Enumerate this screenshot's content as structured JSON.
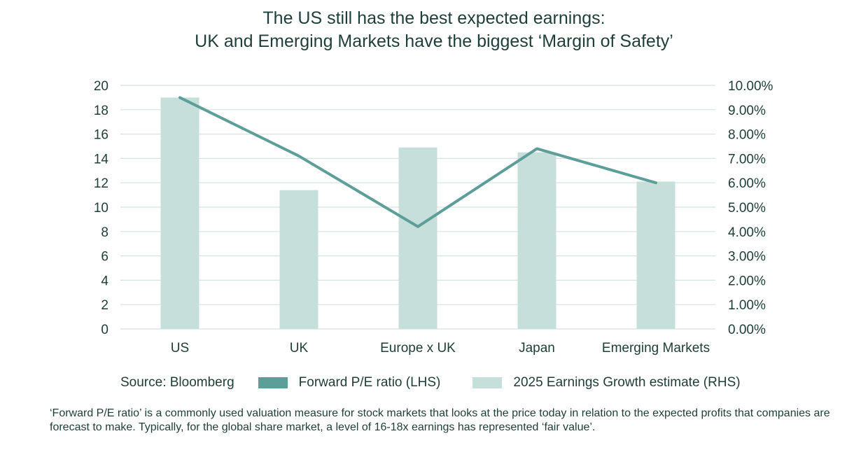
{
  "title": {
    "line1": "The US still has the best expected earnings:",
    "line2": "UK and Emerging Markets have the biggest ‘Margin of Safety’"
  },
  "legend": {
    "source": "Source: Bloomberg",
    "line_label": "Forward P/E ratio (LHS)",
    "bar_label": "2025 Earnings Growth estimate (RHS)"
  },
  "footnote": "‘Forward P/E ratio’ is a commonly used valuation measure for stock markets that looks at the price today in relation to the expected profits that companies are forecast to make. Typically, for the global share market, a level of 16-18x earnings has represented ‘fair value’.",
  "colors": {
    "line": "#5e9e98",
    "bar": "#c6dfdb",
    "grid": "#d6e4e1",
    "text": "#1f3d37"
  },
  "chart_data": {
    "type": "bar",
    "categories": [
      "US",
      "UK",
      "Europe x UK",
      "Japan",
      "Emerging Markets"
    ],
    "series": [
      {
        "name": "2025 Earnings Growth estimate (RHS)",
        "type": "bar",
        "axis": "right",
        "values": [
          9.5,
          5.7,
          7.45,
          7.25,
          6.05
        ]
      },
      {
        "name": "Forward P/E ratio (LHS)",
        "type": "line",
        "axis": "left",
        "values": [
          19.0,
          14.2,
          8.4,
          14.8,
          12.0
        ]
      }
    ],
    "ylim_left": [
      0,
      20
    ],
    "yticks_left": [
      "0",
      "2",
      "4",
      "6",
      "8",
      "10",
      "12",
      "14",
      "16",
      "18",
      "20"
    ],
    "ylim_right": [
      0,
      10
    ],
    "yticks_right": [
      "0.00%",
      "1.00%",
      "2.00%",
      "3.00%",
      "4.00%",
      "5.00%",
      "6.00%",
      "7.00%",
      "8.00%",
      "9.00%",
      "10.00%"
    ],
    "grid": true,
    "legend_position": "bottom"
  }
}
